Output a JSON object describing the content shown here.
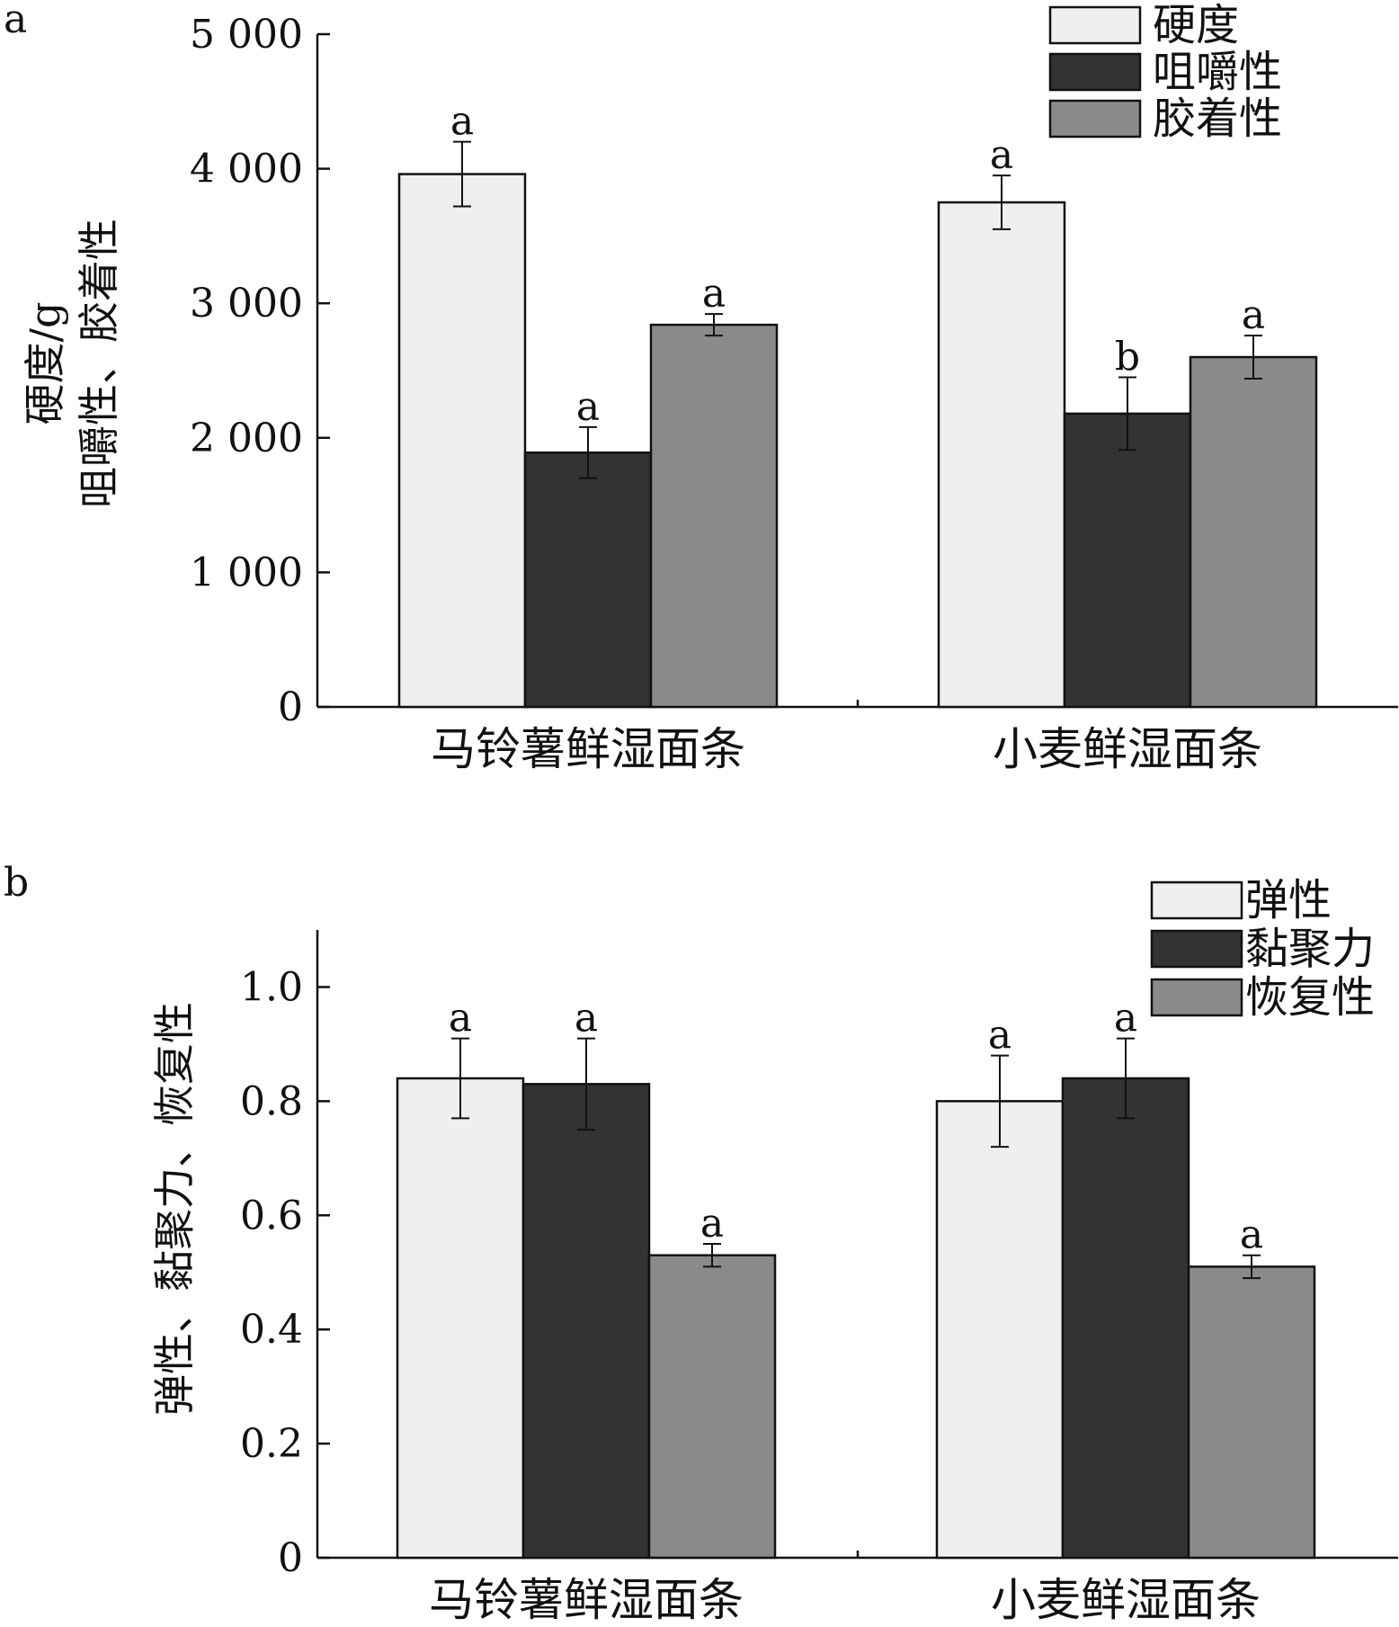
{
  "chart_data": [
    {
      "panel": "a",
      "type": "bar",
      "categories": [
        "马铃薯鲜湿面条",
        "小麦鲜湿面条"
      ],
      "ylabel_lines": [
        "硬度/g",
        "咀嚼性、胶着性"
      ],
      "ylim": [
        0,
        5000
      ],
      "yticks": [
        0,
        1000,
        2000,
        3000,
        4000,
        5000
      ],
      "ytick_labels": [
        "0",
        "1 000",
        "2 000",
        "3 000",
        "4 000",
        "5 000"
      ],
      "legend_position": "top-right",
      "series": [
        {
          "name": "硬度",
          "color": "#efefef",
          "values": [
            3960,
            3750
          ],
          "errors": [
            240,
            200
          ],
          "significance": [
            "a",
            "a"
          ]
        },
        {
          "name": "咀嚼性",
          "color": "#333333",
          "values": [
            1890,
            2180
          ],
          "errors": [
            190,
            270
          ],
          "significance": [
            "a",
            "b"
          ]
        },
        {
          "name": "胶着性",
          "color": "#8a8a8a",
          "values": [
            2840,
            2600
          ],
          "errors": [
            80,
            160
          ],
          "significance": [
            "a",
            "a"
          ]
        }
      ]
    },
    {
      "panel": "b",
      "type": "bar",
      "categories": [
        "马铃薯鲜湿面条",
        "小麦鲜湿面条"
      ],
      "ylabel_lines": [
        "弹性、黏聚力、恢复性"
      ],
      "ylim": [
        0,
        1.1
      ],
      "yticks": [
        0,
        0.2,
        0.4,
        0.6,
        0.8,
        1.0
      ],
      "ytick_labels": [
        "0",
        "0.2",
        "0.4",
        "0.6",
        "0.8",
        "1.0"
      ],
      "legend_position": "top-right",
      "series": [
        {
          "name": "弹性",
          "color": "#efefef",
          "values": [
            0.84,
            0.8
          ],
          "errors": [
            0.07,
            0.08
          ],
          "significance": [
            "a",
            "a"
          ]
        },
        {
          "name": "黏聚力",
          "color": "#333333",
          "values": [
            0.83,
            0.84
          ],
          "errors": [
            0.08,
            0.07
          ],
          "significance": [
            "a",
            "a"
          ]
        },
        {
          "name": "恢复性",
          "color": "#8a8a8a",
          "values": [
            0.53,
            0.51
          ],
          "errors": [
            0.02,
            0.02
          ],
          "significance": [
            "a",
            "a"
          ]
        }
      ]
    }
  ]
}
